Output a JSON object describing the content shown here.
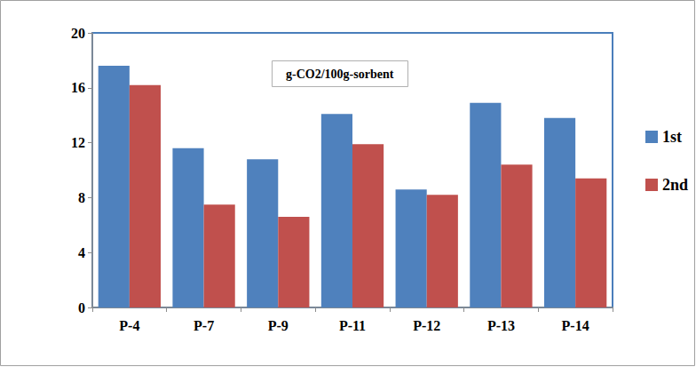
{
  "chart_data": {
    "type": "bar",
    "annotation": "g-CO2/100g-sorbent",
    "categories": [
      "P-4",
      "P-7",
      "P-9",
      "P-11",
      "P-12",
      "P-13",
      "P-14"
    ],
    "series": [
      {
        "name": "1st",
        "color": "#4f81bd",
        "values": [
          17.6,
          11.6,
          10.8,
          14.1,
          8.6,
          14.9,
          13.8
        ]
      },
      {
        "name": "2nd",
        "color": "#c0504d",
        "values": [
          16.2,
          7.5,
          6.6,
          11.9,
          8.2,
          10.4,
          9.4
        ]
      }
    ],
    "ylim": [
      0,
      20
    ],
    "yticks": [
      0,
      4,
      8,
      12,
      16,
      20
    ],
    "grid": false,
    "legend": "right"
  }
}
